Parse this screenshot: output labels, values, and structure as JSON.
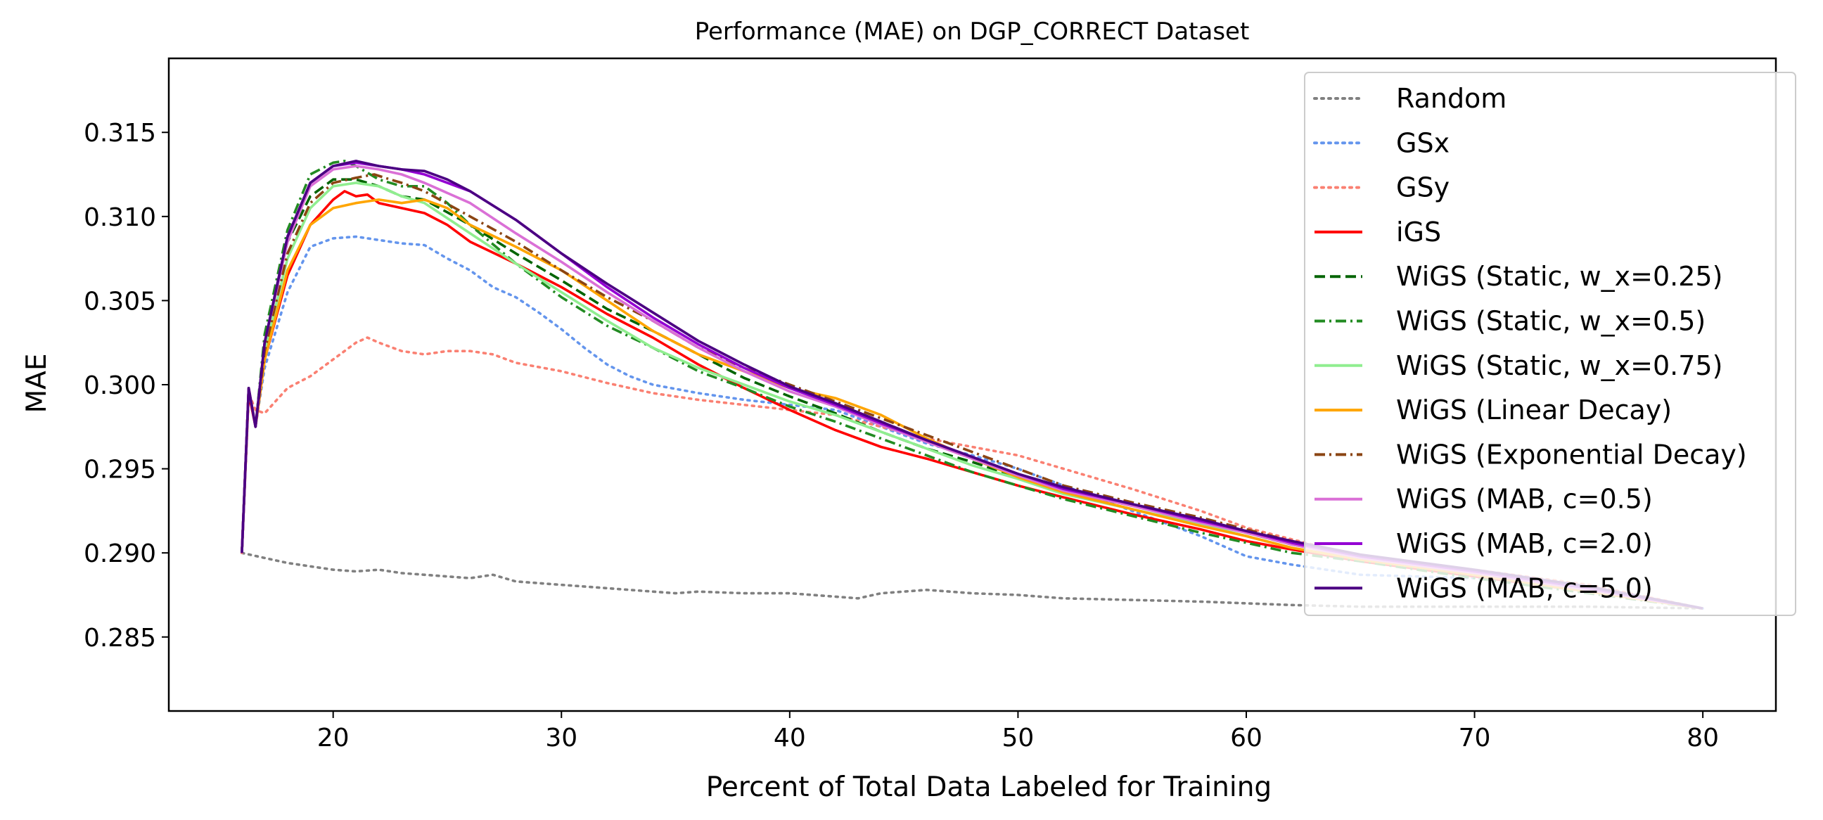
{
  "chart_data": {
    "type": "line",
    "title": "Performance (MAE) on DGP_CORRECT Dataset",
    "xlabel": "Percent of Total Data Labeled for Training",
    "ylabel": "MAE",
    "xlim": [
      12.8,
      83.2
    ],
    "ylim": [
      0.2806,
      0.3194
    ],
    "xticks": [
      20,
      30,
      40,
      50,
      60,
      70,
      80
    ],
    "xtick_labels": [
      "20",
      "30",
      "40",
      "50",
      "60",
      "70",
      "80"
    ],
    "yticks": [
      0.285,
      0.29,
      0.295,
      0.3,
      0.305,
      0.31,
      0.315
    ],
    "ytick_labels": [
      "0.285",
      "0.290",
      "0.295",
      "0.300",
      "0.305",
      "0.310",
      "0.315"
    ],
    "grid": false,
    "legend_position": "upper right",
    "series": [
      {
        "name": "Random",
        "color": "#808080",
        "dash": "dotted",
        "x": [
          16,
          17,
          18,
          19,
          20,
          21,
          22,
          23,
          24,
          25,
          26,
          27,
          28,
          30,
          32,
          34,
          35,
          36,
          38,
          40,
          42,
          43,
          44,
          46,
          48,
          50,
          52,
          55,
          58,
          60,
          62,
          65,
          70,
          75,
          80
        ],
        "y": [
          0.29,
          0.2897,
          0.2894,
          0.2892,
          0.289,
          0.2889,
          0.289,
          0.2888,
          0.2887,
          0.2886,
          0.2885,
          0.2887,
          0.2883,
          0.2881,
          0.2879,
          0.2877,
          0.2876,
          0.2877,
          0.2876,
          0.2876,
          0.2874,
          0.2873,
          0.2876,
          0.2878,
          0.2876,
          0.2875,
          0.2873,
          0.2872,
          0.2871,
          0.287,
          0.2869,
          0.2868,
          0.2868,
          0.2868,
          0.2867
        ]
      },
      {
        "name": "GSx",
        "color": "#6495ED",
        "dash": "dotted",
        "x": [
          16,
          16.3,
          16.6,
          17,
          18,
          19,
          20,
          21,
          22,
          23,
          24,
          25,
          26,
          27,
          28,
          29,
          30,
          31,
          32,
          33,
          34,
          36,
          38,
          40,
          42,
          44,
          46,
          48,
          50,
          52,
          55,
          58,
          60,
          62,
          65,
          70,
          75,
          80
        ],
        "y": [
          0.29,
          0.2995,
          0.2975,
          0.301,
          0.3055,
          0.3082,
          0.3087,
          0.3088,
          0.3086,
          0.3084,
          0.3083,
          0.3075,
          0.3068,
          0.3058,
          0.3052,
          0.3043,
          0.3033,
          0.3022,
          0.3012,
          0.3005,
          0.3,
          0.2995,
          0.2991,
          0.2988,
          0.2985,
          0.2975,
          0.2965,
          0.2958,
          0.295,
          0.294,
          0.2925,
          0.291,
          0.2898,
          0.2893,
          0.2887,
          0.2885,
          0.288,
          0.2867
        ]
      },
      {
        "name": "GSy",
        "color": "#FA8072",
        "dash": "dotted",
        "x": [
          16,
          16.3,
          16.6,
          17,
          18,
          19,
          20,
          21,
          21.5,
          22,
          23,
          24,
          25,
          26,
          27,
          28,
          30,
          32,
          34,
          36,
          38,
          40,
          42,
          44,
          46,
          48,
          50,
          52,
          55,
          58,
          60,
          62,
          65,
          70,
          75,
          80
        ],
        "y": [
          0.29,
          0.2995,
          0.2985,
          0.2983,
          0.2998,
          0.3005,
          0.3015,
          0.3025,
          0.3028,
          0.3025,
          0.302,
          0.3018,
          0.302,
          0.302,
          0.3018,
          0.3013,
          0.3008,
          0.3001,
          0.2995,
          0.2991,
          0.2988,
          0.2985,
          0.2982,
          0.2975,
          0.2968,
          0.2963,
          0.2958,
          0.295,
          0.2938,
          0.2925,
          0.2915,
          0.2908,
          0.2898,
          0.289,
          0.2881,
          0.2867
        ]
      },
      {
        "name": "iGS",
        "color": "#FF0000",
        "dash": "solid",
        "x": [
          16,
          16.3,
          16.6,
          17,
          18,
          19,
          20,
          20.5,
          21,
          21.5,
          22,
          23,
          24,
          25,
          26,
          28,
          30,
          32,
          34,
          36,
          38,
          40,
          42,
          44,
          46,
          48,
          50,
          52,
          55,
          58,
          60,
          62,
          65,
          70,
          75,
          80
        ],
        "y": [
          0.29,
          0.2995,
          0.2975,
          0.3015,
          0.3065,
          0.3095,
          0.311,
          0.3115,
          0.3112,
          0.3113,
          0.3108,
          0.3105,
          0.3102,
          0.3095,
          0.3085,
          0.3072,
          0.3058,
          0.3042,
          0.3028,
          0.3012,
          0.2998,
          0.2985,
          0.2973,
          0.2963,
          0.2956,
          0.2948,
          0.294,
          0.2933,
          0.2923,
          0.2914,
          0.2907,
          0.2902,
          0.2895,
          0.2886,
          0.2877,
          0.2867
        ]
      },
      {
        "name": "WiGS (Static, w_x=0.25)",
        "color": "#006400",
        "dash": "dashed",
        "x": [
          16,
          16.3,
          16.6,
          17,
          18,
          19,
          20,
          21,
          22,
          23,
          24,
          26,
          28,
          30,
          32,
          34,
          36,
          38,
          40,
          42,
          44,
          46,
          48,
          50,
          52,
          55,
          58,
          60,
          62,
          65,
          70,
          75,
          80
        ],
        "y": [
          0.29,
          0.2998,
          0.2975,
          0.3025,
          0.3085,
          0.3112,
          0.3122,
          0.3122,
          0.3118,
          0.3112,
          0.311,
          0.3095,
          0.3078,
          0.3062,
          0.3045,
          0.3032,
          0.3018,
          0.3004,
          0.2993,
          0.2983,
          0.2972,
          0.2962,
          0.2954,
          0.2945,
          0.2937,
          0.2928,
          0.292,
          0.2912,
          0.2905,
          0.2898,
          0.2888,
          0.2878,
          0.2867
        ]
      },
      {
        "name": "WiGS (Static, w_x=0.5)",
        "color": "#228B22",
        "dash": "dashdot",
        "x": [
          16,
          16.3,
          16.6,
          17,
          18,
          19,
          20,
          20.5,
          21,
          22,
          23,
          24,
          25,
          26,
          28,
          30,
          32,
          34,
          36,
          38,
          40,
          42,
          44,
          46,
          48,
          50,
          52,
          55,
          58,
          60,
          62,
          65,
          70,
          75,
          80
        ],
        "y": [
          0.29,
          0.2998,
          0.2975,
          0.303,
          0.3092,
          0.3125,
          0.3132,
          0.3133,
          0.313,
          0.3122,
          0.3118,
          0.3118,
          0.3108,
          0.3095,
          0.3072,
          0.3052,
          0.3035,
          0.3022,
          0.3008,
          0.2998,
          0.2987,
          0.2978,
          0.2968,
          0.2958,
          0.2948,
          0.294,
          0.2932,
          0.2922,
          0.2912,
          0.2906,
          0.29,
          0.2895,
          0.2885,
          0.2876,
          0.2867
        ]
      },
      {
        "name": "WiGS (Static, w_x=0.75)",
        "color": "#90EE90",
        "dash": "solid",
        "x": [
          16,
          16.3,
          16.6,
          17,
          18,
          19,
          20,
          21,
          22,
          23,
          24,
          26,
          28,
          30,
          32,
          34,
          36,
          38,
          40,
          42,
          44,
          46,
          48,
          50,
          52,
          55,
          58,
          60,
          62,
          65,
          70,
          75,
          80
        ],
        "y": [
          0.29,
          0.2998,
          0.2975,
          0.302,
          0.3075,
          0.3105,
          0.3118,
          0.312,
          0.3118,
          0.3112,
          0.3108,
          0.309,
          0.3072,
          0.3055,
          0.3038,
          0.3022,
          0.301,
          0.3,
          0.299,
          0.2982,
          0.2972,
          0.2962,
          0.2952,
          0.2944,
          0.2935,
          0.2926,
          0.2917,
          0.291,
          0.2903,
          0.2896,
          0.2887,
          0.2877,
          0.2867
        ]
      },
      {
        "name": "WiGS (Linear Decay)",
        "color": "#FFA500",
        "dash": "solid",
        "x": [
          16,
          16.3,
          16.6,
          17,
          18,
          19,
          20,
          21,
          22,
          23,
          24,
          25,
          26,
          28,
          30,
          32,
          34,
          36,
          38,
          40,
          42,
          44,
          46,
          48,
          50,
          52,
          55,
          58,
          60,
          62,
          65,
          70,
          75,
          80
        ],
        "y": [
          0.29,
          0.2998,
          0.2975,
          0.3015,
          0.3068,
          0.3095,
          0.3105,
          0.3108,
          0.311,
          0.3108,
          0.311,
          0.3105,
          0.3095,
          0.3082,
          0.3068,
          0.305,
          0.3032,
          0.3018,
          0.3008,
          0.2998,
          0.2992,
          0.2982,
          0.2968,
          0.2956,
          0.2945,
          0.2936,
          0.2926,
          0.2916,
          0.291,
          0.2903,
          0.2896,
          0.2887,
          0.2877,
          0.2867
        ]
      },
      {
        "name": "WiGS (Exponential Decay)",
        "color": "#8B4513",
        "dash": "dashdot",
        "x": [
          16,
          16.3,
          16.6,
          17,
          18,
          19,
          20,
          21,
          21.8,
          22.5,
          23,
          24,
          26,
          28,
          30,
          32,
          34,
          36,
          38,
          40,
          42,
          44,
          46,
          48,
          50,
          52,
          55,
          58,
          60,
          62,
          65,
          70,
          75,
          80
        ],
        "y": [
          0.29,
          0.2998,
          0.2975,
          0.302,
          0.3078,
          0.3108,
          0.312,
          0.3123,
          0.3125,
          0.3122,
          0.312,
          0.3115,
          0.31,
          0.3085,
          0.3068,
          0.3052,
          0.3038,
          0.3022,
          0.301,
          0.3,
          0.299,
          0.298,
          0.297,
          0.296,
          0.295,
          0.294,
          0.293,
          0.2921,
          0.2914,
          0.2907,
          0.2898,
          0.2888,
          0.2878,
          0.2867
        ]
      },
      {
        "name": "WiGS (MAB, c=0.5)",
        "color": "#DA70D6",
        "dash": "solid",
        "x": [
          16,
          16.3,
          16.6,
          17,
          18,
          19,
          20,
          21,
          22,
          23,
          24,
          26,
          28,
          30,
          32,
          34,
          36,
          38,
          40,
          42,
          44,
          46,
          48,
          50,
          52,
          55,
          58,
          60,
          62,
          65,
          70,
          75,
          80
        ],
        "y": [
          0.29,
          0.2998,
          0.2975,
          0.3025,
          0.3085,
          0.3118,
          0.3128,
          0.313,
          0.3128,
          0.3125,
          0.312,
          0.3108,
          0.309,
          0.3073,
          0.3055,
          0.3038,
          0.3022,
          0.3008,
          0.2996,
          0.2987,
          0.2976,
          0.2966,
          0.2956,
          0.2946,
          0.2937,
          0.2928,
          0.2918,
          0.2912,
          0.2905,
          0.2897,
          0.2888,
          0.2878,
          0.2867
        ]
      },
      {
        "name": "WiGS (MAB, c=2.0)",
        "color": "#9400D3",
        "dash": "solid",
        "x": [
          16,
          16.3,
          16.6,
          17,
          18,
          19,
          20,
          21,
          22,
          23,
          24,
          26,
          28,
          30,
          32,
          34,
          36,
          38,
          40,
          42,
          44,
          46,
          48,
          50,
          52,
          55,
          58,
          60,
          62,
          65,
          70,
          75,
          80
        ],
        "y": [
          0.29,
          0.2998,
          0.2975,
          0.3025,
          0.3088,
          0.312,
          0.313,
          0.3132,
          0.313,
          0.3128,
          0.3125,
          0.3115,
          0.3098,
          0.3078,
          0.3058,
          0.304,
          0.3024,
          0.301,
          0.2998,
          0.2988,
          0.2977,
          0.2967,
          0.2957,
          0.2947,
          0.2938,
          0.2929,
          0.2919,
          0.2913,
          0.2906,
          0.2898,
          0.2889,
          0.2879,
          0.2867
        ]
      },
      {
        "name": "WiGS (MAB, c=5.0)",
        "color": "#4B0082",
        "dash": "solid",
        "x": [
          16,
          16.3,
          16.6,
          17,
          18,
          19,
          20,
          21,
          22,
          23,
          24,
          25,
          26,
          28,
          30,
          32,
          34,
          36,
          38,
          40,
          42,
          44,
          46,
          48,
          50,
          52,
          55,
          58,
          60,
          62,
          65,
          70,
          75,
          80
        ],
        "y": [
          0.29,
          0.2998,
          0.2975,
          0.3025,
          0.3088,
          0.312,
          0.313,
          0.3133,
          0.313,
          0.3128,
          0.3127,
          0.3122,
          0.3115,
          0.3098,
          0.3078,
          0.306,
          0.3043,
          0.3026,
          0.3012,
          0.2999,
          0.2989,
          0.2978,
          0.2967,
          0.2957,
          0.2947,
          0.2939,
          0.2929,
          0.292,
          0.2913,
          0.2907,
          0.2899,
          0.289,
          0.288,
          0.2867
        ]
      }
    ]
  }
}
